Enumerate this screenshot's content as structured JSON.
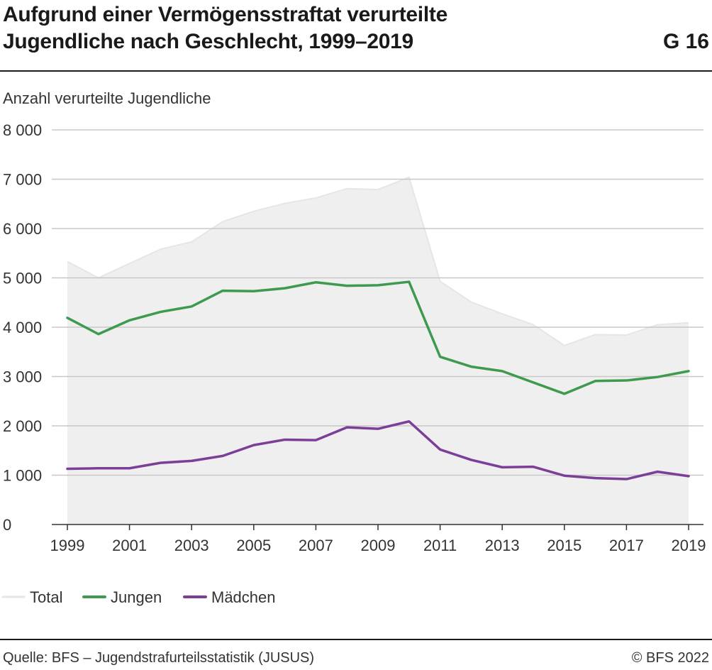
{
  "header": {
    "title_line1": "Aufgrund einer Vermögensstraftat verurteilte",
    "title_line2": "Jugendliche nach Geschlecht, 1999–2019",
    "code": "G 16"
  },
  "footer": {
    "source": "Quelle: BFS – Jugendstrafurteilsstatistik (JUSUS)",
    "copyright": "© BFS 2022"
  },
  "chart_data": {
    "type": "line",
    "ylabel": "Anzahl verurteilte Jugendliche",
    "ylim": [
      0,
      8000
    ],
    "yticks": [
      0,
      1000,
      2000,
      3000,
      4000,
      5000,
      6000,
      7000,
      8000
    ],
    "ytick_labels": [
      "0",
      "1 000",
      "2 000",
      "3 000",
      "4 000",
      "5 000",
      "6 000",
      "7 000",
      "8 000"
    ],
    "xticks": [
      1999,
      2001,
      2003,
      2005,
      2007,
      2009,
      2011,
      2013,
      2015,
      2017,
      2019
    ],
    "x": [
      1999,
      2000,
      2001,
      2002,
      2003,
      2004,
      2005,
      2006,
      2007,
      2008,
      2009,
      2010,
      2011,
      2012,
      2013,
      2014,
      2015,
      2016,
      2017,
      2018,
      2019
    ],
    "grid": true,
    "legend_position": "bottom-left",
    "series": [
      {
        "name": "Total",
        "style": "area",
        "color": "#efefef",
        "line_color": "#e6e6e6",
        "values": [
          5330,
          5000,
          5290,
          5580,
          5730,
          6140,
          6350,
          6510,
          6620,
          6810,
          6790,
          7040,
          4930,
          4510,
          4270,
          4050,
          3630,
          3850,
          3840,
          4050,
          4090
        ]
      },
      {
        "name": "Jungen",
        "style": "line",
        "color": "#3e9a4f",
        "values": [
          4190,
          3860,
          4140,
          4310,
          4420,
          4740,
          4730,
          4790,
          4910,
          4840,
          4850,
          4920,
          3400,
          3200,
          3110,
          2880,
          2650,
          2910,
          2920,
          2990,
          3110
        ]
      },
      {
        "name": "Mädchen",
        "style": "line",
        "color": "#7b3f98",
        "values": [
          1130,
          1140,
          1140,
          1250,
          1290,
          1390,
          1610,
          1720,
          1710,
          1970,
          1940,
          2090,
          1520,
          1310,
          1160,
          1170,
          990,
          940,
          920,
          1070,
          980
        ]
      }
    ]
  }
}
